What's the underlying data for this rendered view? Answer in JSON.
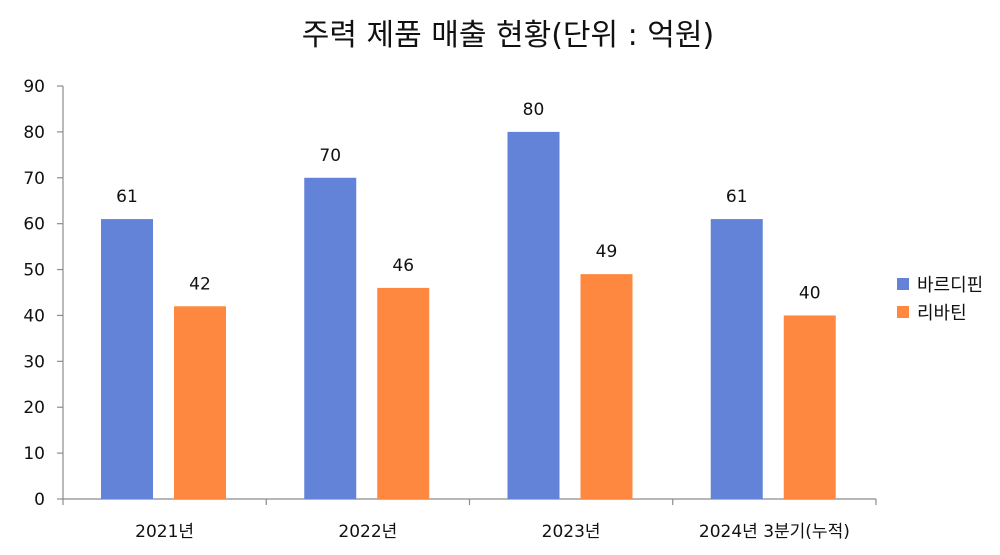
{
  "chart_data": {
    "type": "bar",
    "title": "주력 제품 매출 현황(단위 : 억원)",
    "categories": [
      "2021년",
      "2022년",
      "2023년",
      "2024년 3분기(누적)"
    ],
    "series": [
      {
        "name": "바르디핀",
        "values": [
          61,
          70,
          80,
          61
        ],
        "color": "#6283d8"
      },
      {
        "name": "리바틴",
        "values": [
          42,
          46,
          49,
          40
        ],
        "color": "#fe8840"
      }
    ],
    "xlabel": "",
    "ylabel": "",
    "ylim": [
      0,
      90
    ],
    "yticks": [
      0,
      10,
      20,
      30,
      40,
      50,
      60,
      70,
      80,
      90
    ],
    "grid": false,
    "legend_position": "right",
    "data_labels": true
  }
}
